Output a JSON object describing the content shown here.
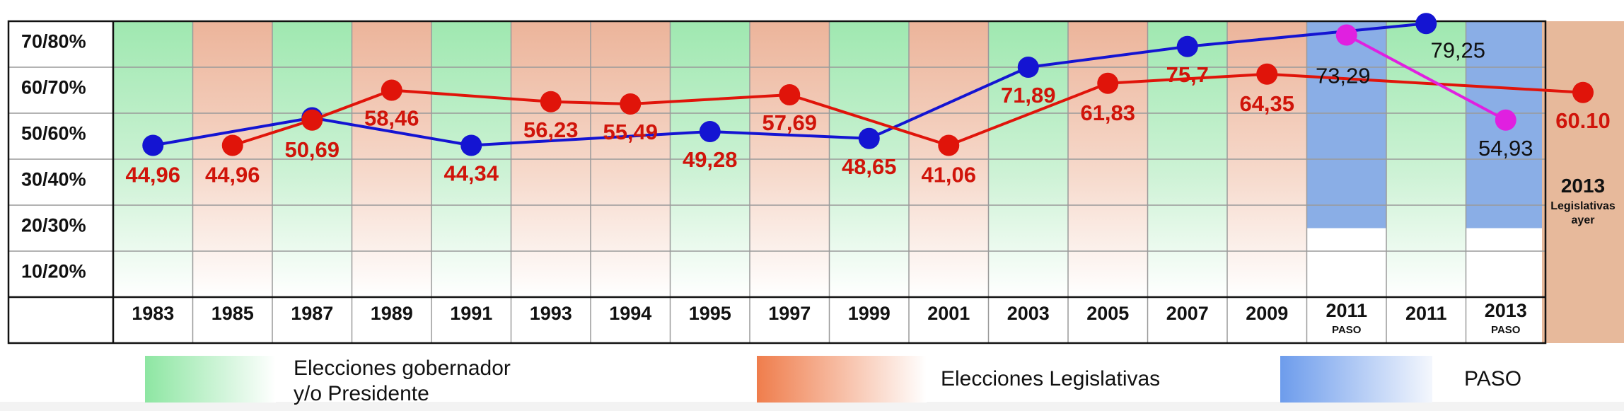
{
  "chart_data": {
    "type": "line",
    "y_tick_labels": [
      "70/80%",
      "60/70%",
      "50/60%",
      "30/40%",
      "20/30%",
      "10/20%"
    ],
    "categories": [
      {
        "year": "1983",
        "sub": "",
        "kind": "gobernador"
      },
      {
        "year": "1985",
        "sub": "",
        "kind": "legislativas"
      },
      {
        "year": "1987",
        "sub": "",
        "kind": "gobernador"
      },
      {
        "year": "1989",
        "sub": "",
        "kind": "legislativas"
      },
      {
        "year": "1991",
        "sub": "",
        "kind": "gobernador"
      },
      {
        "year": "1993",
        "sub": "",
        "kind": "legislativas"
      },
      {
        "year": "1994",
        "sub": "",
        "kind": "legislativas"
      },
      {
        "year": "1995",
        "sub": "",
        "kind": "gobernador"
      },
      {
        "year": "1997",
        "sub": "",
        "kind": "legislativas"
      },
      {
        "year": "1999",
        "sub": "",
        "kind": "gobernador"
      },
      {
        "year": "2001",
        "sub": "",
        "kind": "legislativas"
      },
      {
        "year": "2003",
        "sub": "",
        "kind": "gobernador"
      },
      {
        "year": "2005",
        "sub": "",
        "kind": "legislativas"
      },
      {
        "year": "2007",
        "sub": "",
        "kind": "gobernador"
      },
      {
        "year": "2009",
        "sub": "",
        "kind": "legislativas"
      },
      {
        "year": "2011",
        "sub": "PASO",
        "kind": "paso"
      },
      {
        "year": "2011",
        "sub": "",
        "kind": "gobernador"
      },
      {
        "year": "2013",
        "sub": "PASO",
        "kind": "paso"
      }
    ],
    "series": [
      {
        "color": "#1414d2",
        "points": [
          {
            "i": 0,
            "label": "44,96",
            "band": 3.3
          },
          {
            "i": 2,
            "label": "",
            "band": 3.9
          },
          {
            "i": 4,
            "label": "44,34",
            "band": 3.3
          },
          {
            "i": 7,
            "label": "49,28",
            "band": 3.6
          },
          {
            "i": 9,
            "label": "48,65",
            "band": 3.45
          },
          {
            "i": 11,
            "label": "71,89",
            "band": 5.0
          },
          {
            "i": 13,
            "label": "75,7",
            "band": 5.45
          },
          {
            "i": 16,
            "label": "79,25",
            "band": 5.95
          }
        ]
      },
      {
        "color": "#e0140a",
        "points": [
          {
            "i": 1,
            "label": "44,96",
            "band": 3.3
          },
          {
            "i": 2,
            "label": "50,69",
            "band": 3.85
          },
          {
            "i": 3,
            "label": "58,46",
            "band": 4.5
          },
          {
            "i": 5,
            "label": "56,23",
            "band": 4.25
          },
          {
            "i": 6,
            "label": "55,49",
            "band": 4.2
          },
          {
            "i": 8,
            "label": "57,69",
            "band": 4.4
          },
          {
            "i": 10,
            "label": "41,06",
            "band": 3.3
          },
          {
            "i": 12,
            "label": "61,83",
            "band": 4.65
          },
          {
            "i": 14,
            "label": "64,35",
            "band": 4.85
          },
          {
            "i": 18,
            "label": "60.10",
            "band": 4.45
          }
        ]
      },
      {
        "color": "#e020e0",
        "points": [
          {
            "i": 15,
            "label": "73,29",
            "band": 5.7
          },
          {
            "i": 17,
            "label": "54,93",
            "band": 3.85
          }
        ]
      }
    ],
    "side_column": {
      "year": "2013",
      "line1": "Legislativas",
      "line2": "ayer"
    },
    "legend": [
      {
        "kind": "gobernador",
        "line1": "Elecciones gobernador",
        "line2": "y/o Presidente"
      },
      {
        "kind": "legislativas",
        "line1": "Elecciones Legislativas",
        "line2": ""
      },
      {
        "kind": "paso",
        "line1": "PASO",
        "line2": ""
      }
    ],
    "colors": {
      "gobernador": "#9fe8b0",
      "legislativas": "#ecb49a",
      "paso": "#8aaee6",
      "side_column": "#e7b99b"
    },
    "grid": true
  }
}
